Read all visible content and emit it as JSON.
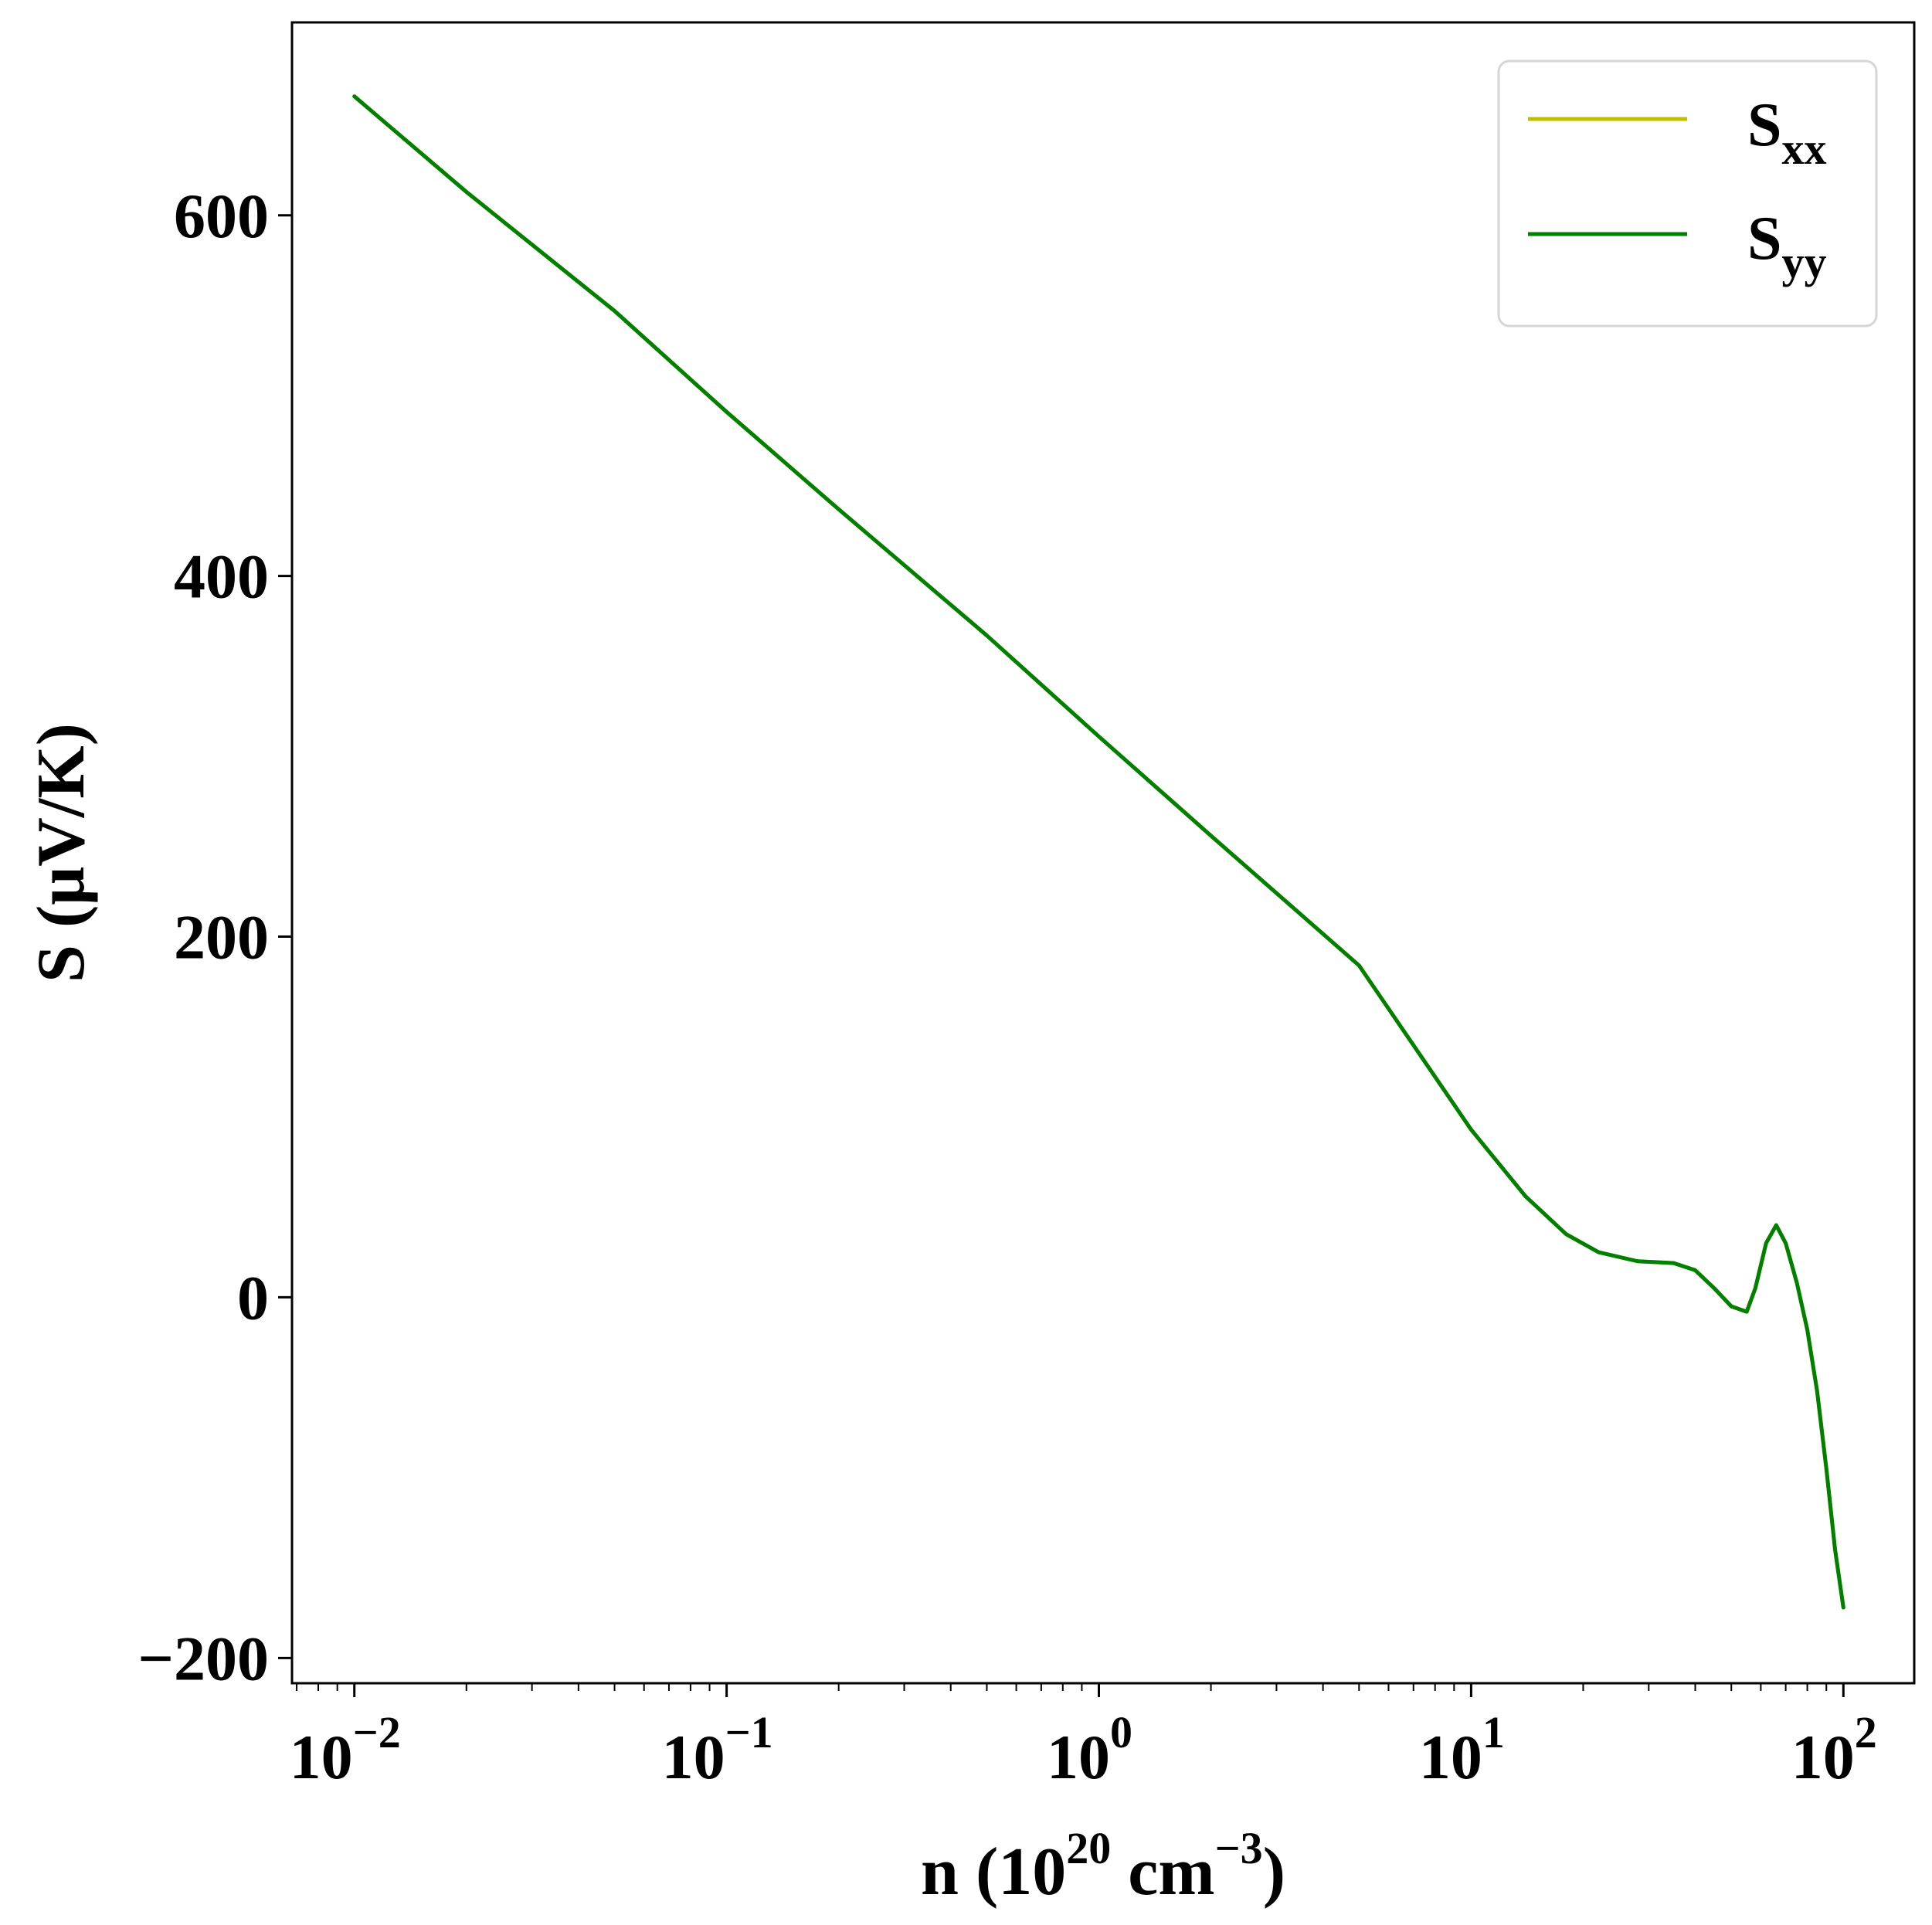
{
  "chart_data": {
    "type": "line",
    "xscale": "log",
    "xlim": [
      0.0068,
      155
    ],
    "ylim": [
      -214,
      707
    ],
    "grid": false,
    "legend_position": "top-right",
    "x_ticks": [
      0.01,
      0.1,
      1,
      10,
      100
    ],
    "x_tick_labels": [
      {
        "base": "10",
        "exp": "−2"
      },
      {
        "base": "10",
        "exp": "−1"
      },
      {
        "base": "10",
        "exp": "0"
      },
      {
        "base": "10",
        "exp": "1"
      },
      {
        "base": "10",
        "exp": "2"
      }
    ],
    "y_ticks": [
      -200,
      0,
      200,
      400,
      600
    ],
    "y_tick_labels": [
      "−200",
      "0",
      "200",
      "400",
      "600"
    ],
    "xlabel": {
      "prefix": "n (10",
      "sup1": "20",
      "middle": " cm",
      "sup2": "−3",
      "suffix": ")"
    },
    "ylabel": "S (μV/K)",
    "series": [
      {
        "name": {
          "main": "S",
          "sub": "xx"
        },
        "color": "#bfbf00",
        "x": [
          0.01,
          0.02,
          0.05,
          0.1,
          0.2,
          0.5,
          1,
          2,
          5,
          10,
          14,
          18,
          22,
          28,
          35,
          40,
          45,
          50,
          55,
          58,
          62,
          66,
          70,
          75,
          80,
          85,
          90,
          95,
          100
        ],
        "y": [
          666,
          613,
          547,
          491,
          437,
          367,
          311,
          256,
          184,
          93,
          56,
          35,
          25,
          20,
          19,
          15,
          5,
          -5,
          -8,
          5,
          30,
          40,
          30,
          8,
          -18,
          -52,
          -95,
          -140,
          -172
        ]
      },
      {
        "name": {
          "main": "S",
          "sub": "yy"
        },
        "color": "#008000",
        "x": [
          0.01,
          0.02,
          0.05,
          0.1,
          0.2,
          0.5,
          1,
          2,
          5,
          10,
          14,
          18,
          22,
          28,
          35,
          40,
          45,
          50,
          55,
          58,
          62,
          66,
          70,
          75,
          80,
          85,
          90,
          95,
          100
        ],
        "y": [
          666,
          613,
          547,
          491,
          437,
          367,
          311,
          256,
          184,
          93,
          56,
          35,
          25,
          20,
          19,
          15,
          5,
          -5,
          -8,
          5,
          30,
          40,
          30,
          8,
          -18,
          -52,
          -95,
          -140,
          -172
        ]
      }
    ]
  }
}
